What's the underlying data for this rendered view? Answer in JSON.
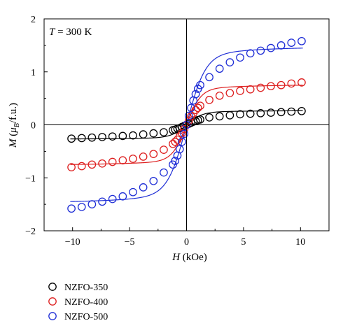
{
  "chart_data": {
    "type": "scatter",
    "title": "",
    "annotation": {
      "italic": "T",
      "text": " = 300 K"
    },
    "xlabel": {
      "italic": "H",
      "text": " (kOe)"
    },
    "ylabel": {
      "italic": "M",
      "open": " (",
      "mu": "μ",
      "sub": "B",
      "close": "/f.u.)"
    },
    "xlim": [
      -12.5,
      12.5
    ],
    "ylim": [
      -2,
      2
    ],
    "xticks": [
      -10,
      -5,
      0,
      5,
      10
    ],
    "yticks": [
      -2,
      -1,
      0,
      1,
      2
    ],
    "xtick_labels": [
      "−10",
      "−5",
      "0",
      "5",
      "10"
    ],
    "ytick_labels": [
      "−2",
      "−1",
      "0",
      "1",
      "2"
    ],
    "grid": false,
    "legend_position": "below-left",
    "series": [
      {
        "name": "NZFO-350",
        "color": "#000000",
        "marker": "open-circle",
        "fit": {
          "ms": 0.27,
          "h0": 0.45
        },
        "points": [
          [
            -10.1,
            -0.26
          ],
          [
            -9.2,
            -0.25
          ],
          [
            -8.3,
            -0.24
          ],
          [
            -7.4,
            -0.23
          ],
          [
            -6.5,
            -0.22
          ],
          [
            -5.6,
            -0.21
          ],
          [
            -4.7,
            -0.2
          ],
          [
            -3.8,
            -0.18
          ],
          [
            -2.9,
            -0.16
          ],
          [
            -2.0,
            -0.14
          ],
          [
            -1.2,
            -0.1
          ],
          [
            -1.0,
            -0.09
          ],
          [
            -0.8,
            -0.07
          ],
          [
            -0.6,
            -0.06
          ],
          [
            -0.4,
            -0.04
          ],
          [
            -0.2,
            -0.02
          ],
          [
            0.0,
            0.0
          ],
          [
            0.2,
            0.02
          ],
          [
            0.4,
            0.04
          ],
          [
            0.6,
            0.06
          ],
          [
            0.8,
            0.07
          ],
          [
            1.0,
            0.09
          ],
          [
            1.2,
            0.1
          ],
          [
            2.0,
            0.14
          ],
          [
            2.9,
            0.16
          ],
          [
            3.8,
            0.18
          ],
          [
            4.7,
            0.2
          ],
          [
            5.6,
            0.21
          ],
          [
            6.5,
            0.22
          ],
          [
            7.4,
            0.23
          ],
          [
            8.3,
            0.24
          ],
          [
            9.2,
            0.25
          ],
          [
            10.1,
            0.26
          ]
        ]
      },
      {
        "name": "NZFO-400",
        "color": "#dd1e1e",
        "marker": "open-circle",
        "fit": {
          "ms": 0.76,
          "h0": 0.42
        },
        "points": [
          [
            -10.1,
            -0.8
          ],
          [
            -9.2,
            -0.78
          ],
          [
            -8.3,
            -0.75
          ],
          [
            -7.4,
            -0.73
          ],
          [
            -6.5,
            -0.7
          ],
          [
            -5.6,
            -0.67
          ],
          [
            -4.7,
            -0.64
          ],
          [
            -3.8,
            -0.6
          ],
          [
            -2.9,
            -0.55
          ],
          [
            -2.0,
            -0.47
          ],
          [
            -1.2,
            -0.36
          ],
          [
            -1.0,
            -0.32
          ],
          [
            -0.8,
            -0.28
          ],
          [
            -0.6,
            -0.22
          ],
          [
            -0.4,
            -0.16
          ],
          [
            -0.2,
            -0.08
          ],
          [
            0.0,
            0.0
          ],
          [
            0.2,
            0.08
          ],
          [
            0.4,
            0.16
          ],
          [
            0.6,
            0.22
          ],
          [
            0.8,
            0.28
          ],
          [
            1.0,
            0.32
          ],
          [
            1.2,
            0.36
          ],
          [
            2.0,
            0.47
          ],
          [
            2.9,
            0.55
          ],
          [
            3.8,
            0.6
          ],
          [
            4.7,
            0.64
          ],
          [
            5.6,
            0.67
          ],
          [
            6.5,
            0.7
          ],
          [
            7.4,
            0.73
          ],
          [
            8.3,
            0.75
          ],
          [
            9.2,
            0.78
          ],
          [
            10.1,
            0.8
          ]
        ]
      },
      {
        "name": "NZFO-500",
        "color": "#1f2ed6",
        "marker": "open-circle",
        "fit": {
          "ms": 1.47,
          "h0": 0.55
        },
        "points": [
          [
            -10.1,
            -1.58
          ],
          [
            -9.2,
            -1.55
          ],
          [
            -8.3,
            -1.5
          ],
          [
            -7.4,
            -1.45
          ],
          [
            -6.5,
            -1.4
          ],
          [
            -5.6,
            -1.35
          ],
          [
            -4.7,
            -1.27
          ],
          [
            -3.8,
            -1.18
          ],
          [
            -2.9,
            -1.06
          ],
          [
            -2.0,
            -0.9
          ],
          [
            -1.2,
            -0.75
          ],
          [
            -1.0,
            -0.68
          ],
          [
            -0.8,
            -0.58
          ],
          [
            -0.6,
            -0.46
          ],
          [
            -0.4,
            -0.32
          ],
          [
            -0.2,
            -0.17
          ],
          [
            0.0,
            0.0
          ],
          [
            0.2,
            0.17
          ],
          [
            0.4,
            0.32
          ],
          [
            0.6,
            0.46
          ],
          [
            0.8,
            0.58
          ],
          [
            1.0,
            0.68
          ],
          [
            1.2,
            0.75
          ],
          [
            2.0,
            0.9
          ],
          [
            2.9,
            1.06
          ],
          [
            3.8,
            1.18
          ],
          [
            4.7,
            1.27
          ],
          [
            5.6,
            1.35
          ],
          [
            6.5,
            1.4
          ],
          [
            7.4,
            1.45
          ],
          [
            8.3,
            1.5
          ],
          [
            9.2,
            1.55
          ],
          [
            10.1,
            1.58
          ]
        ]
      }
    ]
  }
}
